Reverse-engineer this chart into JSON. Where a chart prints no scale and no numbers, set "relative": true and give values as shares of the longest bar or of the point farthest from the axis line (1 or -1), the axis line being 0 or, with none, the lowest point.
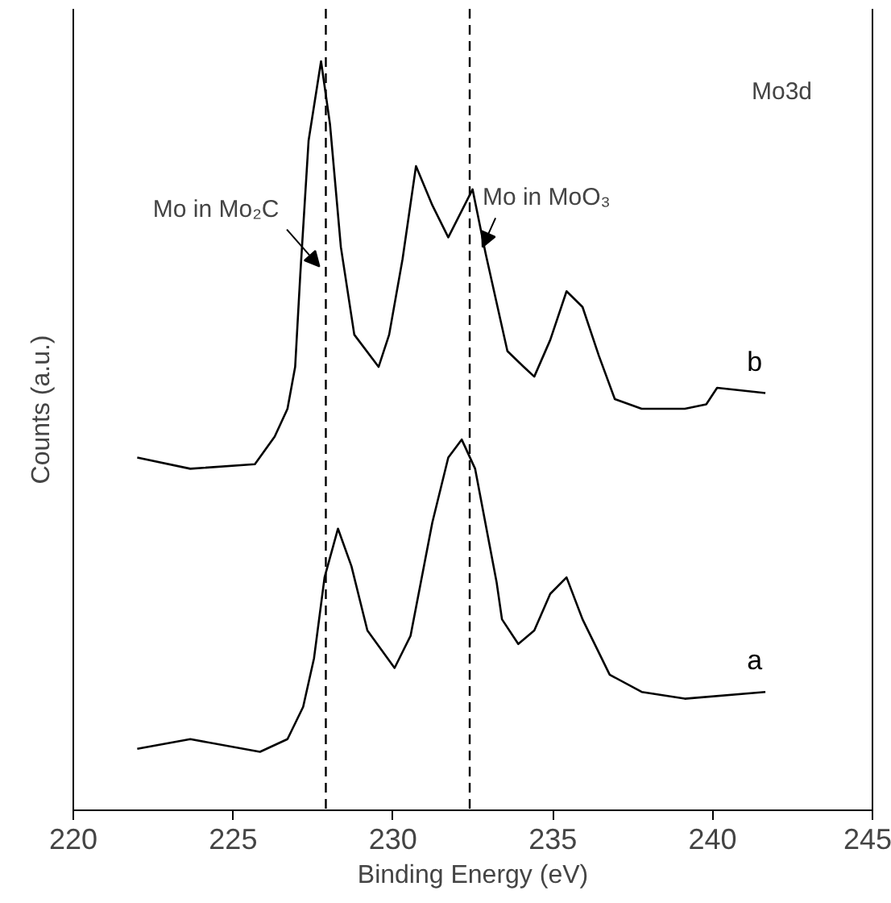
{
  "chart_data": {
    "type": "line",
    "relative": true,
    "xlabel": "Binding Energy (eV)",
    "ylabel": "Counts (a.u.)",
    "xlim": [
      220,
      245
    ],
    "xticks": [
      220,
      225,
      230,
      235,
      240,
      245
    ],
    "tick_labels": "x",
    "grid": false,
    "marker": "none",
    "line_style": "solid",
    "series": [
      {
        "name": "b",
        "color": "#000000",
        "x": [
          222.0,
          223.66,
          225.68,
          226.3,
          226.7,
          226.94,
          227.1,
          227.36,
          227.75,
          228.03,
          228.37,
          228.79,
          229.55,
          229.88,
          230.3,
          230.72,
          231.23,
          231.73,
          232.49,
          232.9,
          233.58,
          234.09,
          234.42,
          234.92,
          235.43,
          235.93,
          236.44,
          236.94,
          237.78,
          239.13,
          239.8,
          240.14,
          241.65
        ],
        "values": [
          0.471,
          0.456,
          0.462,
          0.499,
          0.536,
          0.592,
          0.715,
          0.894,
          1.0,
          0.916,
          0.752,
          0.635,
          0.592,
          0.635,
          0.736,
          0.86,
          0.808,
          0.765,
          0.829,
          0.743,
          0.613,
          0.592,
          0.579,
          0.628,
          0.693,
          0.672,
          0.607,
          0.549,
          0.536,
          0.536,
          0.542,
          0.564,
          0.557
        ]
      },
      {
        "name": "a",
        "color": "#000000",
        "x": [
          222.0,
          223.66,
          225.84,
          226.7,
          227.19,
          227.53,
          227.86,
          228.28,
          228.7,
          229.2,
          230.05,
          230.55,
          231.23,
          231.73,
          232.15,
          232.57,
          233.24,
          233.41,
          233.92,
          234.42,
          234.92,
          235.43,
          235.93,
          236.78,
          237.78,
          239.13,
          241.65
        ],
        "values": [
          0.082,
          0.095,
          0.078,
          0.095,
          0.138,
          0.203,
          0.311,
          0.376,
          0.326,
          0.24,
          0.19,
          0.233,
          0.384,
          0.471,
          0.495,
          0.456,
          0.305,
          0.255,
          0.222,
          0.24,
          0.289,
          0.311,
          0.255,
          0.181,
          0.158,
          0.149,
          0.158
        ]
      }
    ],
    "ref_lines": [
      {
        "axis": "x",
        "value": 227.9,
        "color": "#000000",
        "line_style": "dashed"
      },
      {
        "axis": "x",
        "value": 232.4,
        "color": "#000000",
        "line_style": "dashed"
      }
    ],
    "annotations": [
      {
        "text": "Mo in Mo₂C",
        "x": 227.7,
        "y": 0.726
      },
      {
        "text": "Mo in MoO₃",
        "x": 232.8,
        "y": 0.752
      },
      "Mo3d"
    ]
  }
}
